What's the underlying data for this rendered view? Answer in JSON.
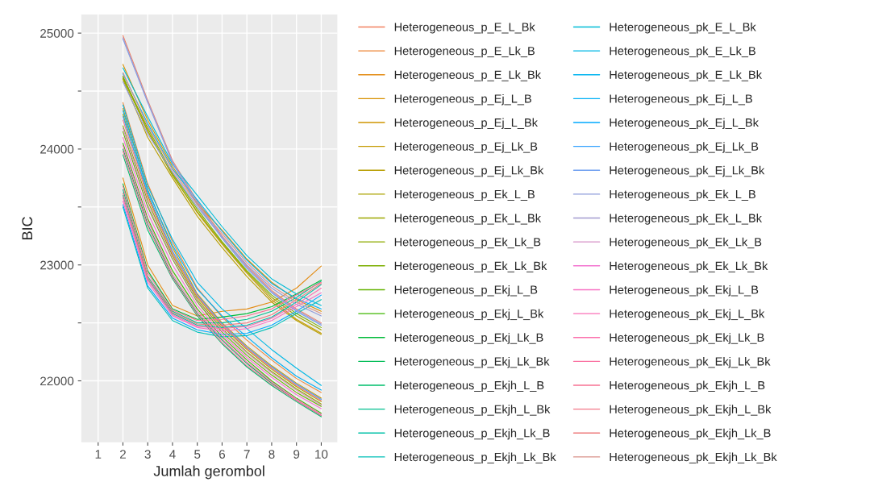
{
  "chart_data": {
    "type": "line",
    "xlabel": "Jumlah gerombol",
    "ylabel": "BIC",
    "x": [
      2,
      3,
      4,
      5,
      6,
      7,
      8,
      9,
      10
    ],
    "xlim": [
      0.32,
      10.65
    ],
    "xticks": [
      1,
      2,
      3,
      4,
      5,
      6,
      7,
      8,
      9,
      10
    ],
    "ylim": [
      21470,
      25160
    ],
    "yticks": [
      22000,
      {
        "value": 22500,
        "label": null
      },
      23000,
      {
        "value": 23500,
        "label": null
      },
      24000,
      {
        "value": 24500,
        "label": null
      },
      25000
    ],
    "grid": true,
    "legend": "right",
    "line_style": "solid",
    "series": [
      {
        "name": "Heterogeneous_p_E_L_Bk",
        "color": "#f2805f",
        "values": [
          24980,
          24420,
          23900,
          23550,
          23250,
          22990,
          22780,
          22620,
          22500
        ]
      },
      {
        "name": "Heterogeneous_p_E_Lk_B",
        "color": "#ee8636",
        "values": [
          24400,
          23700,
          23200,
          22800,
          22550,
          22350,
          22180,
          22020,
          21900
        ]
      },
      {
        "name": "Heterogeneous_p_E_Lk_Bk",
        "color": "#e38c14",
        "values": [
          23750,
          23000,
          22650,
          22560,
          22600,
          22620,
          22680,
          22800,
          22990
        ]
      },
      {
        "name": "Heterogeneous_p_Ej_L_B",
        "color": "#d89000",
        "values": [
          24730,
          24250,
          23850,
          23530,
          23300,
          23050,
          22850,
          22700,
          22600
        ]
      },
      {
        "name": "Heterogeneous_p_Ej_L_Bk",
        "color": "#cf9500",
        "values": [
          24350,
          23650,
          23150,
          22750,
          22500,
          22300,
          22130,
          21980,
          21850
        ]
      },
      {
        "name": "Heterogeneous_p_Ej_Lk_B",
        "color": "#c49a00",
        "values": [
          24630,
          24150,
          23780,
          23450,
          23180,
          22930,
          22700,
          22530,
          22410
        ]
      },
      {
        "name": "Heterogeneous_p_Ej_Lk_Bk",
        "color": "#b89e00",
        "values": [
          24600,
          24100,
          23750,
          23420,
          23150,
          22900,
          22680,
          22520,
          22400
        ]
      },
      {
        "name": "Heterogeneous_p_Ek_L_B",
        "color": "#aba300",
        "values": [
          24300,
          23600,
          23100,
          22720,
          22470,
          22270,
          22100,
          21950,
          21820
        ]
      },
      {
        "name": "Heterogeneous_p_Ek_L_Bk",
        "color": "#9da700",
        "values": [
          24610,
          24160,
          23770,
          23460,
          23190,
          22940,
          22720,
          22560,
          22440
        ]
      },
      {
        "name": "Heterogeneous_p_Ek_Lk_B",
        "color": "#8dab00",
        "values": [
          24200,
          23550,
          23080,
          22700,
          22450,
          22250,
          22080,
          21930,
          21800
        ]
      },
      {
        "name": "Heterogeneous_p_Ek_Lk_Bk",
        "color": "#7cae00",
        "values": [
          24620,
          24180,
          23790,
          23480,
          23200,
          22950,
          22740,
          22580,
          22460
        ]
      },
      {
        "name": "Heterogeneous_p_Ekj_L_B",
        "color": "#64b200",
        "values": [
          24150,
          23500,
          23050,
          22680,
          22420,
          22220,
          22050,
          21900,
          21780
        ]
      },
      {
        "name": "Heterogeneous_p_Ekj_L_Bk",
        "color": "#3eb700",
        "values": [
          24050,
          23400,
          22950,
          22620,
          22380,
          22180,
          22000,
          21850,
          21720
        ]
      },
      {
        "name": "Heterogeneous_p_Ekj_Lk_B",
        "color": "#00ba38",
        "values": [
          23700,
          22950,
          22620,
          22530,
          22550,
          22580,
          22640,
          22750,
          22870
        ]
      },
      {
        "name": "Heterogeneous_p_Ekj_Lk_Bk",
        "color": "#00bc56",
        "values": [
          24000,
          23350,
          22900,
          22580,
          22350,
          22150,
          21980,
          21830,
          21700
        ]
      },
      {
        "name": "Heterogeneous_p_Ekjh_L_B",
        "color": "#00be6c",
        "values": [
          23950,
          23300,
          22880,
          22560,
          22320,
          22120,
          21960,
          21820,
          21690
        ]
      },
      {
        "name": "Heterogeneous_p_Ekjh_L_Bk",
        "color": "#00c08e",
        "values": [
          23650,
          22900,
          22600,
          22500,
          22500,
          22530,
          22600,
          22720,
          22860
        ]
      },
      {
        "name": "Heterogeneous_p_Ekjh_Lk_B",
        "color": "#00c1a7",
        "values": [
          23600,
          22880,
          22580,
          22480,
          22460,
          22480,
          22550,
          22680,
          22830
        ]
      },
      {
        "name": "Heterogeneous_p_Ekjh_Lk_Bk",
        "color": "#00c0b8",
        "values": [
          23500,
          22800,
          22520,
          22420,
          22380,
          22390,
          22460,
          22580,
          22700
        ]
      },
      {
        "name": "Heterogeneous_pk_E_L_Bk",
        "color": "#00bcd6",
        "values": [
          24700,
          24280,
          23870,
          23600,
          23330,
          23080,
          22880,
          22750,
          22650
        ]
      },
      {
        "name": "Heterogeneous_pk_E_Lk_B",
        "color": "#00b8e5",
        "values": [
          24380,
          23680,
          23220,
          22850,
          22620,
          22450,
          22270,
          22110,
          21960
        ]
      },
      {
        "name": "Heterogeneous_pk_E_Lk_Bk",
        "color": "#00b4f0",
        "values": [
          24650,
          24220,
          23830,
          23560,
          23290,
          23040,
          22840,
          22710,
          22620
        ]
      },
      {
        "name": "Heterogeneous_pk_Ej_L_B",
        "color": "#00b0f6",
        "values": [
          24330,
          23640,
          23170,
          22790,
          22560,
          22380,
          22200,
          22040,
          21920
        ]
      },
      {
        "name": "Heterogeneous_pk_Ej_L_Bk",
        "color": "#00a9ff",
        "values": [
          23520,
          22820,
          22540,
          22440,
          22400,
          22410,
          22480,
          22600,
          22740
        ]
      },
      {
        "name": "Heterogeneous_pk_Ej_Lk_B",
        "color": "#35a2ff",
        "values": [
          24280,
          23620,
          23120,
          22740,
          22490,
          22290,
          22120,
          21970,
          21840
        ]
      },
      {
        "name": "Heterogeneous_pk_Ej_Lk_Bk",
        "color": "#6fa0f0",
        "values": [
          24950,
          24400,
          23880,
          23520,
          23230,
          22970,
          22760,
          22600,
          22480
        ]
      },
      {
        "name": "Heterogeneous_pk_Ek_L_B",
        "color": "#8e9cdb",
        "values": [
          24580,
          24130,
          23800,
          23500,
          23240,
          23000,
          22800,
          22660,
          22560
        ]
      },
      {
        "name": "Heterogeneous_pk_Ek_L_Bk",
        "color": "#a29bd0",
        "values": [
          24960,
          24410,
          23890,
          23540,
          23240,
          22980,
          22770,
          22610,
          22490
        ]
      },
      {
        "name": "Heterogeneous_pk_Ek_Lk_B",
        "color": "#d693c8",
        "values": [
          24180,
          23520,
          23060,
          22690,
          22440,
          22240,
          22070,
          21920,
          21790
        ]
      },
      {
        "name": "Heterogeneous_pk_Ek_Lk_Bk",
        "color": "#f374d0",
        "values": [
          24100,
          23450,
          23000,
          22650,
          22400,
          22200,
          22030,
          21880,
          21760
        ]
      },
      {
        "name": "Heterogeneous_pk_Ekj_L_B",
        "color": "#f770c4",
        "values": [
          23550,
          22850,
          22560,
          22460,
          22430,
          22450,
          22520,
          22640,
          22760
        ]
      },
      {
        "name": "Heterogeneous_pk_Ekj_L_Bk",
        "color": "#fa6fb8",
        "values": [
          24030,
          23380,
          22920,
          22600,
          22360,
          22160,
          21990,
          21840,
          21710
        ]
      },
      {
        "name": "Heterogeneous_pk_Ekj_Lk_B",
        "color": "#fb6fac",
        "values": [
          23580,
          22870,
          22570,
          22470,
          22450,
          22470,
          22540,
          22660,
          22800
        ]
      },
      {
        "name": "Heterogeneous_pk_Ekj_Lk_Bk",
        "color": "#fa70a0",
        "values": [
          23980,
          23330,
          22890,
          22570,
          22330,
          22130,
          21970,
          21830,
          21700
        ]
      },
      {
        "name": "Heterogeneous_pk_Ekjh_L_B",
        "color": "#f77394",
        "values": [
          23680,
          22930,
          22610,
          22520,
          22530,
          22560,
          22620,
          22740,
          22850
        ]
      },
      {
        "name": "Heterogeneous_pk_Ekjh_L_Bk",
        "color": "#f37788",
        "values": [
          24250,
          23580,
          23100,
          22730,
          22480,
          22280,
          22110,
          21960,
          21830
        ]
      },
      {
        "name": "Heterogeneous_pk_Ekjh_Lk_B",
        "color": "#ee7b7c",
        "values": [
          23620,
          22890,
          22590,
          22490,
          22480,
          22500,
          22570,
          22700,
          22840
        ]
      },
      {
        "name": "Heterogeneous_pk_Ekjh_Lk_Bk",
        "color": "#d9928a",
        "values": [
          24660,
          24200,
          23820,
          23520,
          23270,
          23020,
          22820,
          22680,
          22580
        ]
      }
    ]
  }
}
